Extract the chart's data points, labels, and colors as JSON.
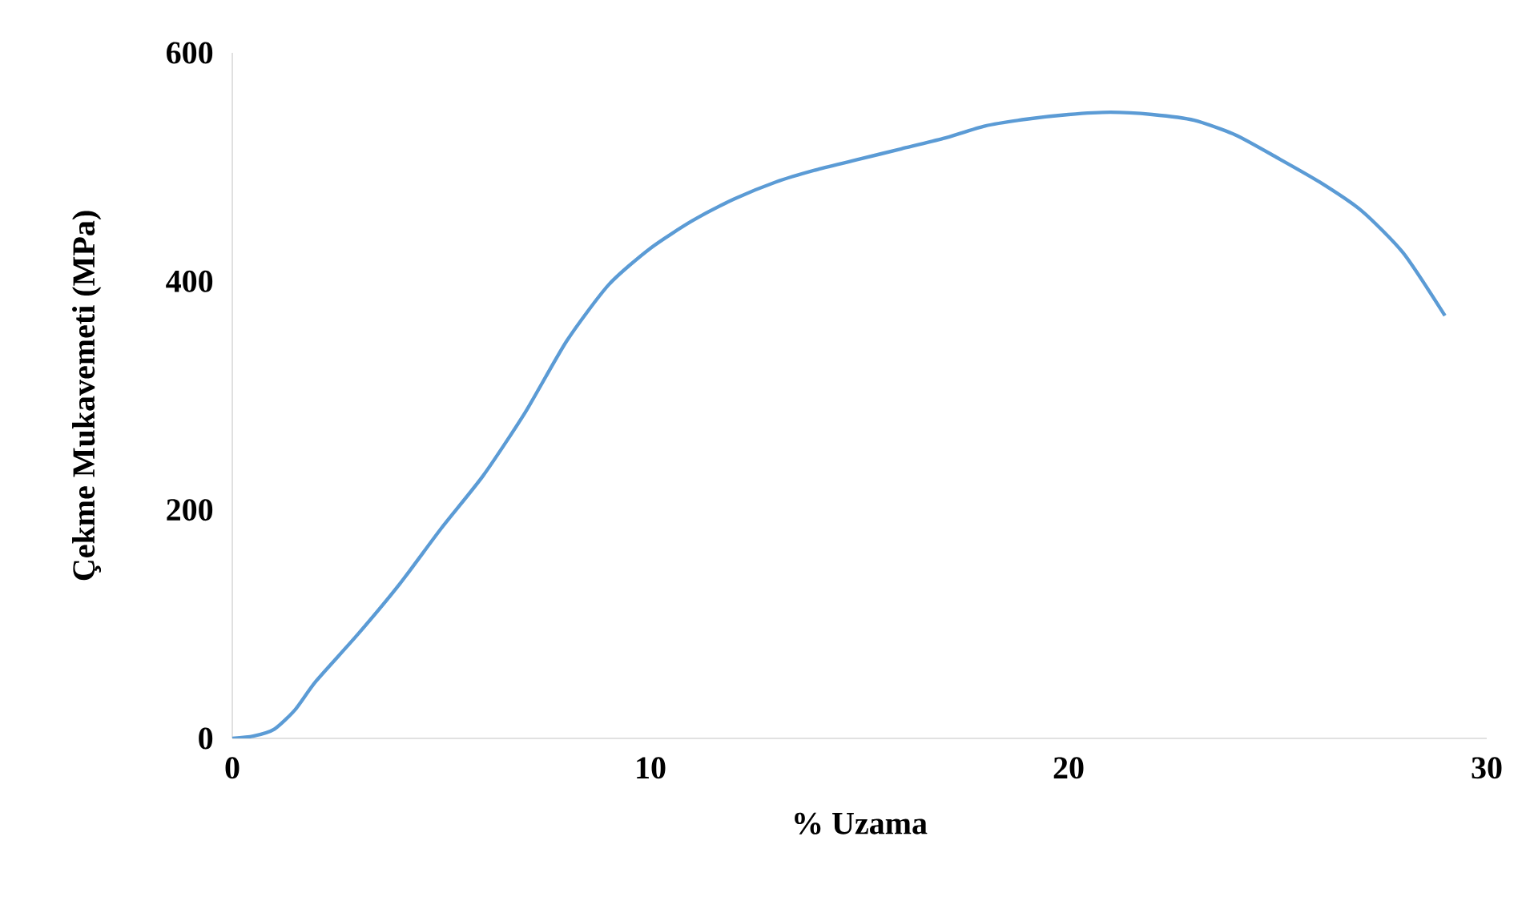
{
  "chart_data": {
    "type": "line",
    "xlabel": "% Uzama",
    "ylabel": "Çekme Mukavemeti (MPa)",
    "xlim": [
      0,
      30
    ],
    "ylim": [
      0,
      600
    ],
    "xticks": [
      0,
      10,
      20,
      30
    ],
    "yticks": [
      0,
      200,
      400,
      600
    ],
    "grid": false,
    "marker": "none",
    "line_style": "solid",
    "series": [
      {
        "color": "#5b9bd5",
        "x": [
          0,
          0.5,
          1,
          1.5,
          2,
          3,
          4,
          5,
          6,
          7,
          8,
          9,
          10,
          11,
          12,
          13,
          14,
          15,
          16,
          17,
          18,
          19,
          20,
          21,
          22,
          23,
          24,
          25,
          26,
          27,
          28,
          29
        ],
        "values": [
          0,
          2,
          8,
          25,
          50,
          91,
          135,
          184,
          230,
          285,
          348,
          397,
          429,
          453,
          472,
          487,
          498,
          507,
          516,
          525,
          536,
          542,
          546,
          548,
          546,
          541,
          528,
          508,
          487,
          462,
          425,
          370
        ]
      }
    ]
  }
}
